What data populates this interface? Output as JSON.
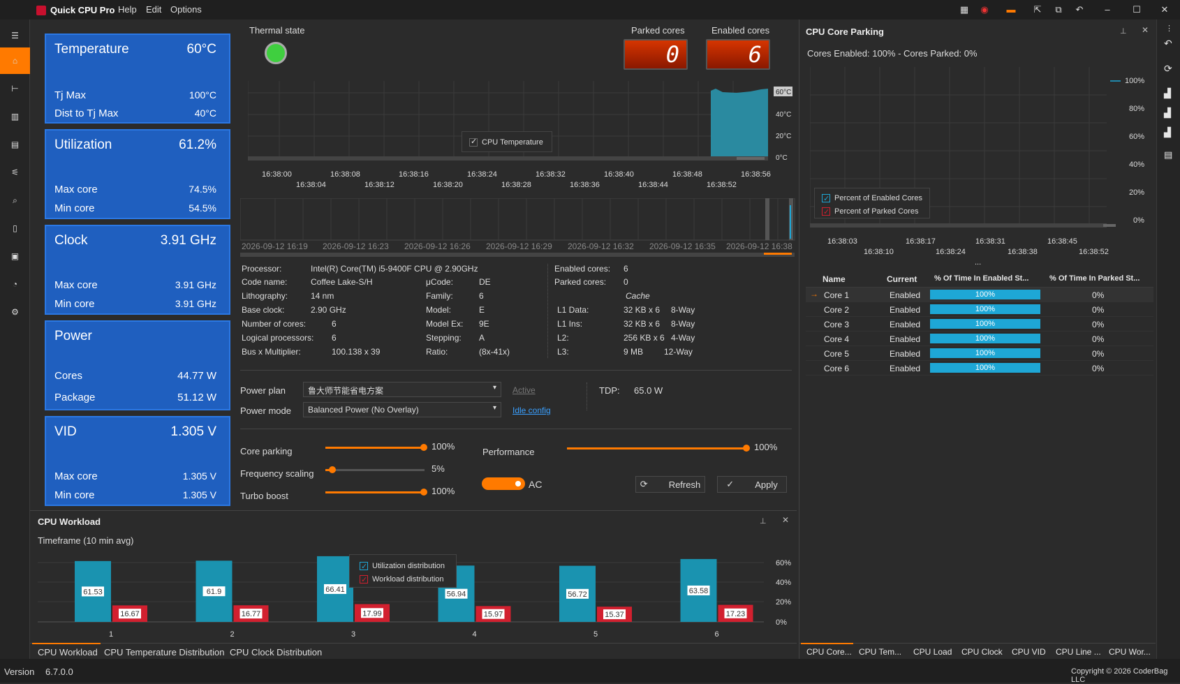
{
  "app": {
    "title": "Quick CPU Pro",
    "menu": [
      "Help",
      "Edit",
      "Options"
    ]
  },
  "cards": {
    "temperature": {
      "title": "Temperature",
      "value": "60°C",
      "rows": [
        {
          "label": "Tj Max",
          "value": "100°C"
        },
        {
          "label": "Dist to Tj Max",
          "value": "40°C"
        }
      ]
    },
    "utilization": {
      "title": "Utilization",
      "value": "61.2%",
      "rows": [
        {
          "label": "Max core",
          "value": "74.5%"
        },
        {
          "label": "Min core",
          "value": "54.5%"
        }
      ]
    },
    "clock": {
      "title": "Clock",
      "value": "3.91 GHz",
      "rows": [
        {
          "label": "Max core",
          "value": "3.91 GHz"
        },
        {
          "label": "Min core",
          "value": "3.91 GHz"
        }
      ]
    },
    "power": {
      "title": "Power",
      "value": "",
      "rows": [
        {
          "label": "Cores",
          "value": "44.77 W"
        },
        {
          "label": "Package",
          "value": "51.12 W"
        }
      ]
    },
    "vid": {
      "title": "VID",
      "value": "1.305 V",
      "rows": [
        {
          "label": "Max core",
          "value": "1.305 V"
        },
        {
          "label": "Min core",
          "value": "1.305 V"
        }
      ]
    }
  },
  "thermal": {
    "label": "Thermal state",
    "state_color": "#3fcf3f"
  },
  "counters": {
    "parked_label": "Parked cores",
    "parked_value": "0",
    "enabled_label": "Enabled cores",
    "enabled_value": "6"
  },
  "temp_chart": {
    "legend": "CPU Temperature",
    "y_ticks": [
      "60°C",
      "40°C",
      "20°C",
      "0°C"
    ],
    "x_ticks_top": [
      "16:38:00",
      "16:38:08",
      "16:38:16",
      "16:38:24",
      "16:38:32",
      "16:38:40",
      "16:38:48",
      "16:38:56"
    ],
    "x_ticks_bottom": [
      "16:38:04",
      "16:38:12",
      "16:38:20",
      "16:38:28",
      "16:38:36",
      "16:38:44",
      "16:38:52"
    ]
  },
  "timeline": {
    "labels": [
      "2026-09-12 16:19",
      "2026-09-12 16:23",
      "2026-09-12 16:26",
      "2026-09-12 16:29",
      "2026-09-12 16:32",
      "2026-09-12 16:35",
      "2026-09-12 16:38"
    ]
  },
  "info": {
    "col1": [
      [
        "Processor:",
        "Intel(R) Core(TM) i5-9400F CPU @ 2.90GHz"
      ],
      [
        "Code name:",
        "Coffee Lake-S/H"
      ],
      [
        "Lithography:",
        "14 nm"
      ],
      [
        "Base clock:",
        "2.90 GHz"
      ],
      [
        "Number of cores:",
        "6"
      ],
      [
        "Logical processors:",
        "6"
      ],
      [
        "Bus x Multiplier:",
        "100.138 x 39"
      ]
    ],
    "col2": [
      [
        "μCode:",
        "DE"
      ],
      [
        "Family:",
        "6"
      ],
      [
        "Model:",
        "E"
      ],
      [
        "Model Ex:",
        "9E"
      ],
      [
        "Stepping:",
        "A"
      ],
      [
        "Ratio:",
        "(8x-41x)"
      ]
    ],
    "col3": [
      [
        "Enabled cores:",
        "6"
      ],
      [
        "Parked cores:",
        "0"
      ]
    ],
    "cache_title": "Cache",
    "cache": [
      [
        "L1 Data:",
        "32 KB x 6",
        "8-Way"
      ],
      [
        "L1 Ins:",
        "32 KB x 6",
        "8-Way"
      ],
      [
        "L2:",
        "256 KB x 6",
        "4-Way"
      ],
      [
        "L3:",
        "9 MB",
        "12-Way"
      ]
    ]
  },
  "power": {
    "plan_label": "Power plan",
    "plan_value": "鲁大师节能省电方案",
    "active_link": "Active",
    "mode_label": "Power mode",
    "mode_value": "Balanced Power (No Overlay)",
    "idle_link": "Idle config",
    "tdp_label": "TDP:",
    "tdp_value": "65.0 W"
  },
  "sliders": {
    "core_parking": {
      "label": "Core parking",
      "value": "100%",
      "level": 1.0
    },
    "freq_scaling": {
      "label": "Frequency scaling",
      "value": "5%",
      "level": 0.05
    },
    "turbo": {
      "label": "Turbo boost",
      "value": "100%",
      "level": 1.0
    },
    "performance": {
      "label": "Performance",
      "value": "100%",
      "level": 1.0
    }
  },
  "toggle": {
    "label": "AC"
  },
  "buttons": {
    "refresh": "Refresh",
    "apply": "Apply"
  },
  "workload": {
    "title": "CPU Workload",
    "timeframe": "Timeframe (10 min avg)",
    "legend": [
      "Utilization distribution",
      "Workload distribution"
    ],
    "y_ticks": [
      "60%",
      "40%",
      "20%",
      "0%"
    ]
  },
  "chart_data": {
    "type": "bar",
    "categories": [
      "1",
      "2",
      "3",
      "4",
      "5",
      "6"
    ],
    "series": [
      {
        "name": "Utilization distribution",
        "values": [
          61.53,
          61.9,
          66.41,
          56.94,
          56.72,
          63.58
        ]
      },
      {
        "name": "Workload distribution",
        "values": [
          16.67,
          16.77,
          17.99,
          15.97,
          15.37,
          17.23
        ]
      }
    ],
    "ylim": [
      0,
      70
    ]
  },
  "bottom_tabs": [
    "CPU Workload",
    "CPU Temperature Distribution",
    "CPU Clock Distribution"
  ],
  "parking": {
    "title": "CPU Core Parking",
    "summary": "Cores Enabled: 100% - Cores Parked: 0%",
    "y_ticks": [
      "100%",
      "80%",
      "60%",
      "40%",
      "20%",
      "0%"
    ],
    "legend": [
      "Percent of Enabled Cores",
      "Percent of Parked Cores"
    ],
    "x_ticks_top": [
      "16:38:03",
      "16:38:17",
      "16:38:31",
      "16:38:45"
    ],
    "x_ticks_bottom": [
      "16:38:10",
      "16:38:24",
      "16:38:38",
      "16:38:52"
    ],
    "more": "..."
  },
  "table": {
    "headers": [
      "Name",
      "Current",
      "% Of Time In Enabled St...",
      "% Of Time In Parked St..."
    ],
    "rows": [
      [
        "Core 1",
        "Enabled",
        "100%",
        "0%"
      ],
      [
        "Core 2",
        "Enabled",
        "100%",
        "0%"
      ],
      [
        "Core 3",
        "Enabled",
        "100%",
        "0%"
      ],
      [
        "Core 4",
        "Enabled",
        "100%",
        "0%"
      ],
      [
        "Core 5",
        "Enabled",
        "100%",
        "0%"
      ],
      [
        "Core 6",
        "Enabled",
        "100%",
        "0%"
      ]
    ]
  },
  "right_tabs": [
    "CPU Core...",
    "CPU Tem...",
    "CPU Load",
    "CPU Clock",
    "CPU VID",
    "CPU Line ...",
    "CPU Wor..."
  ],
  "status": {
    "version_label": "Version",
    "version": "6.7.0.0",
    "copyright": "Copyright © 2026 CoderBag LLC"
  }
}
